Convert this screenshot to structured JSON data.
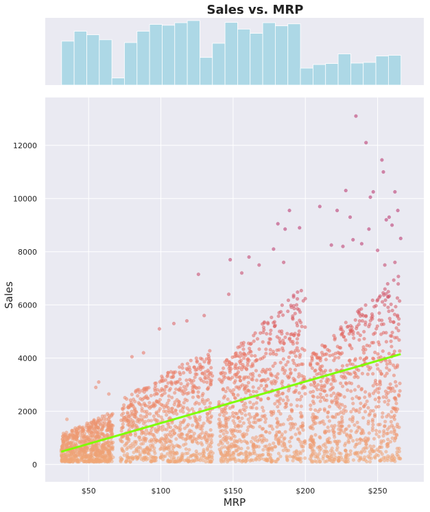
{
  "chart_data": {
    "type": "scatter",
    "title": "Sales vs. MRP",
    "xlabel": "MRP",
    "ylabel": "Sales",
    "xlim": [
      20,
      282
    ],
    "ylim": [
      -650,
      13800
    ],
    "x_ticks": [
      50,
      100,
      150,
      200,
      250
    ],
    "x_tick_labels": [
      "$50",
      "$100",
      "$150",
      "$200",
      "$250"
    ],
    "y_ticks": [
      0,
      2000,
      4000,
      6000,
      8000,
      10000,
      12000
    ],
    "y_tick_labels": [
      "0",
      "2000",
      "4000",
      "6000",
      "8000",
      "10000",
      "12000"
    ],
    "grid": true,
    "background_color": "#eaeaf2",
    "histogram": {
      "bin_start": 31.3,
      "bin_width": 8.7,
      "counts": [
        310,
        380,
        355,
        320,
        50,
        300,
        380,
        428,
        422,
        440,
        455,
        195,
        295,
        442,
        395,
        365,
        440,
        418,
        432,
        120,
        145,
        152,
        220,
        155,
        160,
        205,
        210
      ],
      "color": "#add8e6"
    },
    "regression_line": {
      "x": [
        31,
        266
      ],
      "y": [
        480,
        4150
      ],
      "color": "#7fff00"
    },
    "point_color_scale": [
      "#f0a878",
      "#e87060",
      "#b8306a"
    ],
    "point_clusters": [
      {
        "x_range": [
          31,
          67
        ],
        "y_max": 1900
      },
      {
        "x_range": [
          72,
          136
        ],
        "y_max": 4300
      },
      {
        "x_range": [
          140,
          200
        ],
        "y_max": 6700
      },
      {
        "x_range": [
          203,
          266
        ],
        "y_max": 7200
      }
    ],
    "sample_points": [
      {
        "x": 235,
        "y": 13100
      },
      {
        "x": 242,
        "y": 12100
      },
      {
        "x": 253,
        "y": 11450
      },
      {
        "x": 254,
        "y": 11000
      },
      {
        "x": 228,
        "y": 10300
      },
      {
        "x": 262,
        "y": 10250
      },
      {
        "x": 247,
        "y": 10250
      },
      {
        "x": 245,
        "y": 10050
      },
      {
        "x": 210,
        "y": 9700
      },
      {
        "x": 222,
        "y": 9550
      },
      {
        "x": 264,
        "y": 9550
      },
      {
        "x": 231,
        "y": 9300
      },
      {
        "x": 258,
        "y": 9300
      },
      {
        "x": 256,
        "y": 9200
      },
      {
        "x": 260,
        "y": 9000
      },
      {
        "x": 189,
        "y": 9550
      },
      {
        "x": 186,
        "y": 8850
      },
      {
        "x": 196,
        "y": 8900
      },
      {
        "x": 181,
        "y": 9050
      },
      {
        "x": 178,
        "y": 8100
      },
      {
        "x": 185,
        "y": 7600
      },
      {
        "x": 244,
        "y": 8850
      },
      {
        "x": 239,
        "y": 8300
      },
      {
        "x": 233,
        "y": 8450
      },
      {
        "x": 226,
        "y": 8200
      },
      {
        "x": 218,
        "y": 8250
      },
      {
        "x": 266,
        "y": 8500
      },
      {
        "x": 250,
        "y": 8050
      },
      {
        "x": 262,
        "y": 7600
      },
      {
        "x": 255,
        "y": 7500
      },
      {
        "x": 148,
        "y": 7700
      },
      {
        "x": 156,
        "y": 7200
      },
      {
        "x": 161,
        "y": 7800
      },
      {
        "x": 126,
        "y": 7150
      },
      {
        "x": 147,
        "y": 6400
      },
      {
        "x": 168,
        "y": 7500
      },
      {
        "x": 109,
        "y": 5300
      },
      {
        "x": 99,
        "y": 5100
      },
      {
        "x": 130,
        "y": 5600
      },
      {
        "x": 118,
        "y": 5400
      },
      {
        "x": 57,
        "y": 3100
      },
      {
        "x": 55,
        "y": 2900
      },
      {
        "x": 64,
        "y": 2650
      },
      {
        "x": 35,
        "y": 1700
      },
      {
        "x": 80,
        "y": 4050
      },
      {
        "x": 88,
        "y": 4200
      }
    ]
  }
}
